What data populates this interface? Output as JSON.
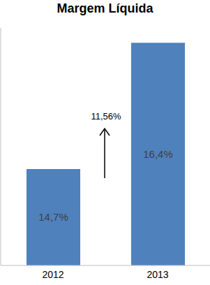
{
  "chart_data": {
    "type": "bar",
    "title": "Margem Líquida",
    "categories": [
      "2012",
      "2013"
    ],
    "values": [
      14.7,
      16.4
    ],
    "value_labels": [
      "14,7%",
      "16,4%"
    ],
    "color": "#4f81bd",
    "ylim": [
      13.4,
      16.6
    ],
    "data_labels": true,
    "tick_labels": "x",
    "annotation": "11,56%"
  }
}
